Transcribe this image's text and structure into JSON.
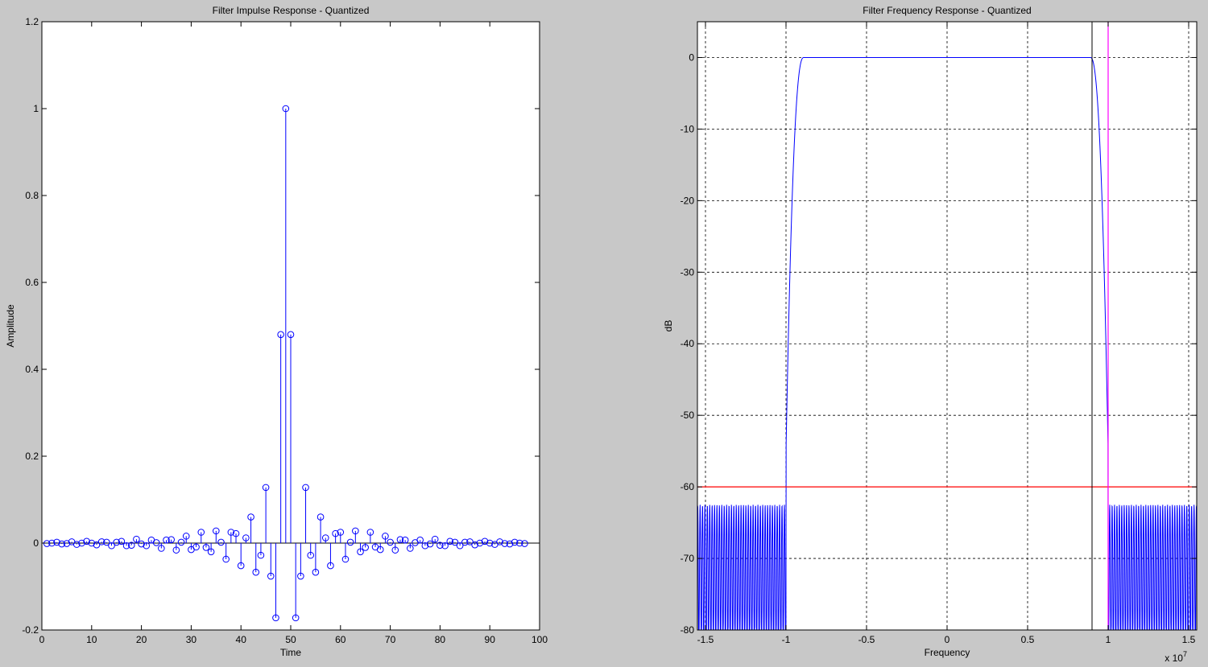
{
  "figure": {
    "background": "#c8c8c8"
  },
  "chart_data": [
    {
      "type": "stem",
      "title": "Filter Impulse Response - Quantized",
      "xlabel": "Time",
      "ylabel": "Amplitude",
      "xlim": [
        0,
        100
      ],
      "ylim": [
        -0.2,
        1.2
      ],
      "xticks": [
        0,
        10,
        20,
        30,
        40,
        50,
        60,
        70,
        80,
        90,
        100
      ],
      "yticks": [
        -0.2,
        0,
        0.2,
        0.4,
        0.6,
        0.8,
        1,
        1.2
      ],
      "grid": false,
      "color": "#0000ff",
      "x": [
        1,
        2,
        3,
        4,
        5,
        6,
        7,
        8,
        9,
        10,
        11,
        12,
        13,
        14,
        15,
        16,
        17,
        18,
        19,
        20,
        21,
        22,
        23,
        24,
        25,
        26,
        27,
        28,
        29,
        30,
        31,
        32,
        33,
        34,
        35,
        36,
        37,
        38,
        39,
        40,
        41,
        42,
        43,
        44,
        45,
        46,
        47,
        48,
        49,
        50,
        51,
        52,
        53,
        54,
        55,
        56,
        57,
        58,
        59,
        60,
        61,
        62,
        63,
        64,
        65,
        66,
        67,
        68,
        69,
        70,
        71,
        72,
        73,
        74,
        75,
        76,
        77,
        78,
        79,
        80,
        81,
        82,
        83,
        84,
        85,
        86,
        87,
        88,
        89,
        90,
        91,
        92,
        93,
        94,
        95,
        96,
        97
      ],
      "y": [
        -0.001,
        0,
        0.002,
        -0.002,
        -0.001,
        0.003,
        -0.003,
        0,
        0.004,
        0,
        -0.004,
        0.003,
        0.002,
        -0.006,
        0.002,
        0.004,
        -0.006,
        -0.005,
        0.009,
        -0.002,
        -0.006,
        0.007,
        0.001,
        -0.012,
        0.007,
        0.008,
        -0.016,
        0.002,
        0.016,
        -0.015,
        -0.009,
        0.025,
        -0.01,
        -0.02,
        0.028,
        0.002,
        -0.037,
        0.025,
        0.022,
        -0.052,
        0.012,
        0.06,
        -0.067,
        -0.028,
        0.128,
        -0.076,
        -0.172,
        0.48,
        1.0,
        0.48,
        -0.172,
        -0.076,
        0.128,
        -0.028,
        -0.067,
        0.06,
        0.012,
        -0.052,
        0.022,
        0.025,
        -0.037,
        0.002,
        0.028,
        -0.02,
        -0.01,
        0.025,
        -0.009,
        -0.015,
        0.016,
        0.002,
        -0.016,
        0.008,
        0.007,
        -0.012,
        0.001,
        0.007,
        -0.006,
        -0.002,
        0.009,
        -0.005,
        -0.006,
        0.004,
        0.002,
        -0.006,
        0.002,
        0.003,
        -0.004,
        0,
        0.004,
        0,
        -0.003,
        0.003,
        -0.001,
        -0.002,
        0.002,
        0,
        -0.001
      ]
    },
    {
      "type": "line",
      "title": "Filter Frequency Response - Quantized",
      "xlabel": "Frequency",
      "ylabel": "dB",
      "x_multiplier": "x 10^7",
      "xlim": [
        -1.55,
        1.55
      ],
      "ylim": [
        -80,
        5
      ],
      "xticks": [
        -1.5,
        -1,
        -0.5,
        0,
        0.5,
        1,
        1.5
      ],
      "yticks": [
        -80,
        -70,
        -60,
        -50,
        -40,
        -30,
        -20,
        -10,
        0
      ],
      "grid": true,
      "series": [
        {
          "color": "#0000ff",
          "passband_edges": [
            -0.9,
            0.9
          ],
          "stopband_edges": [
            -1.0,
            1.0
          ],
          "passband_level_db": 0,
          "stopband_ripple_db": [
            -80,
            -61
          ]
        },
        {
          "color": "#ff0000",
          "kind": "hline",
          "y": -60
        },
        {
          "color": "#ff00ff",
          "kind": "vline",
          "x": 1.0
        },
        {
          "color": "#000000",
          "kind": "vline",
          "x": 0.9
        }
      ]
    }
  ]
}
